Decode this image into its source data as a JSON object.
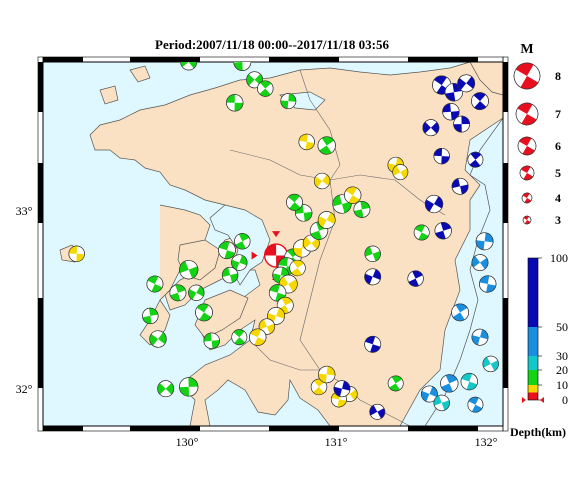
{
  "map": {
    "title": "Period:2007/11/18 00:00--2017/11/18 03:56",
    "lat_labels": [
      "33°",
      "32°"
    ],
    "lon_labels": [
      "130°",
      "131°",
      "132°"
    ],
    "colors": {
      "sea": "#dff8ff",
      "land": "#fbe1c3",
      "coast": "#555555"
    }
  },
  "magnitude_legend": {
    "title": "M",
    "items": [
      {
        "label": "8",
        "mag": 8
      },
      {
        "label": "7",
        "mag": 7
      },
      {
        "label": "6",
        "mag": 6
      },
      {
        "label": "5",
        "mag": 5
      },
      {
        "label": "4",
        "mag": 4
      },
      {
        "label": "3",
        "mag": 3
      }
    ],
    "color": "#e8101e"
  },
  "depth_scale": {
    "title": "Depth(km)",
    "ticks": [
      "100",
      "50",
      "30",
      "20",
      "10",
      "0"
    ],
    "bands": [
      {
        "from": 0,
        "to": 5,
        "color": "#e8101e"
      },
      {
        "from": 5,
        "to": 10,
        "color": "#f6d800"
      },
      {
        "from": 10,
        "to": 20,
        "color": "#14d214"
      },
      {
        "from": 20,
        "to": 30,
        "color": "#12c8c8"
      },
      {
        "from": 30,
        "to": 50,
        "color": "#1a8fe0"
      },
      {
        "from": 50,
        "to": 100,
        "color": "#0a0ab4"
      }
    ]
  },
  "chart_data": {
    "type": "scatter",
    "x_range": [
      129.1,
      132.1
    ],
    "y_range": [
      31.8,
      33.85
    ],
    "events": [
      {
        "lon": 130.62,
        "lat": 32.76,
        "depth": 0,
        "mag": 5.4,
        "color": "#e8101e"
      },
      {
        "lon": 130.73,
        "lat": 32.75,
        "depth": 12,
        "mag": 4.1,
        "color": "#14d214"
      },
      {
        "lon": 130.79,
        "lat": 32.8,
        "depth": 8,
        "mag": 4.3,
        "color": "#f6d800"
      },
      {
        "lon": 130.85,
        "lat": 32.83,
        "depth": 10,
        "mag": 4.0,
        "color": "#f6d800"
      },
      {
        "lon": 130.69,
        "lat": 32.7,
        "depth": 12,
        "mag": 4.2,
        "color": "#14d214"
      },
      {
        "lon": 130.76,
        "lat": 32.69,
        "depth": 8,
        "mag": 3.9,
        "color": "#f6d800"
      },
      {
        "lon": 130.65,
        "lat": 32.65,
        "depth": 10,
        "mag": 4.0,
        "color": "#14d214"
      },
      {
        "lon": 130.7,
        "lat": 32.6,
        "depth": 8,
        "mag": 4.4,
        "color": "#f6d800"
      },
      {
        "lon": 130.63,
        "lat": 32.55,
        "depth": 12,
        "mag": 4.1,
        "color": "#14d214"
      },
      {
        "lon": 130.68,
        "lat": 32.48,
        "depth": 8,
        "mag": 4.0,
        "color": "#f6d800"
      },
      {
        "lon": 130.62,
        "lat": 32.42,
        "depth": 7,
        "mag": 4.2,
        "color": "#f6d800"
      },
      {
        "lon": 130.56,
        "lat": 32.36,
        "depth": 8,
        "mag": 3.9,
        "color": "#f6d800"
      },
      {
        "lon": 130.5,
        "lat": 32.3,
        "depth": 7,
        "mag": 4.1,
        "color": "#f6d800"
      },
      {
        "lon": 130.9,
        "lat": 32.9,
        "depth": 12,
        "mag": 4.3,
        "color": "#14d214"
      },
      {
        "lon": 130.95,
        "lat": 32.96,
        "depth": 8,
        "mag": 4.2,
        "color": "#f6d800"
      },
      {
        "lon": 131.05,
        "lat": 33.05,
        "depth": 12,
        "mag": 4.5,
        "color": "#14d214"
      },
      {
        "lon": 131.12,
        "lat": 33.1,
        "depth": 8,
        "mag": 4.1,
        "color": "#f6d800"
      },
      {
        "lon": 131.18,
        "lat": 33.02,
        "depth": 12,
        "mag": 4.0,
        "color": "#14d214"
      },
      {
        "lon": 130.92,
        "lat": 33.18,
        "depth": 7,
        "mag": 3.9,
        "color": "#f6d800"
      },
      {
        "lon": 130.8,
        "lat": 33.0,
        "depth": 12,
        "mag": 4.1,
        "color": "#14d214"
      },
      {
        "lon": 130.74,
        "lat": 33.06,
        "depth": 12,
        "mag": 4.0,
        "color": "#14d214"
      },
      {
        "lon": 130.4,
        "lat": 33.85,
        "depth": 12,
        "mag": 4.2,
        "color": "#14d214"
      },
      {
        "lon": 130.48,
        "lat": 33.75,
        "depth": 12,
        "mag": 4.0,
        "color": "#14d214"
      },
      {
        "lon": 130.35,
        "lat": 33.62,
        "depth": 12,
        "mag": 4.1,
        "color": "#14d214"
      },
      {
        "lon": 130.55,
        "lat": 33.7,
        "depth": 12,
        "mag": 3.9,
        "color": "#14d214"
      },
      {
        "lon": 130.7,
        "lat": 33.63,
        "depth": 12,
        "mag": 3.8,
        "color": "#14d214"
      },
      {
        "lon": 130.05,
        "lat": 33.85,
        "depth": 12,
        "mag": 4.0,
        "color": "#14d214"
      },
      {
        "lon": 130.82,
        "lat": 33.4,
        "depth": 8,
        "mag": 3.9,
        "color": "#f6d800"
      },
      {
        "lon": 130.95,
        "lat": 33.38,
        "depth": 12,
        "mag": 4.3,
        "color": "#14d214"
      },
      {
        "lon": 131.4,
        "lat": 33.27,
        "depth": 8,
        "mag": 3.9,
        "color": "#f6d800"
      },
      {
        "lon": 131.43,
        "lat": 33.23,
        "depth": 8,
        "mag": 3.8,
        "color": "#f6d800"
      },
      {
        "lon": 130.3,
        "lat": 32.79,
        "depth": 12,
        "mag": 4.2,
        "color": "#14d214"
      },
      {
        "lon": 130.4,
        "lat": 32.84,
        "depth": 12,
        "mag": 3.9,
        "color": "#14d214"
      },
      {
        "lon": 130.38,
        "lat": 32.72,
        "depth": 12,
        "mag": 3.9,
        "color": "#14d214"
      },
      {
        "lon": 130.05,
        "lat": 32.68,
        "depth": 12,
        "mag": 4.5,
        "color": "#14d214"
      },
      {
        "lon": 129.83,
        "lat": 32.6,
        "depth": 12,
        "mag": 4.0,
        "color": "#14d214"
      },
      {
        "lon": 129.98,
        "lat": 32.55,
        "depth": 12,
        "mag": 4.0,
        "color": "#14d214"
      },
      {
        "lon": 130.1,
        "lat": 32.55,
        "depth": 12,
        "mag": 3.9,
        "color": "#14d214"
      },
      {
        "lon": 130.32,
        "lat": 32.65,
        "depth": 12,
        "mag": 3.9,
        "color": "#14d214"
      },
      {
        "lon": 130.15,
        "lat": 32.44,
        "depth": 12,
        "mag": 4.2,
        "color": "#14d214"
      },
      {
        "lon": 129.8,
        "lat": 32.42,
        "depth": 12,
        "mag": 3.9,
        "color": "#14d214"
      },
      {
        "lon": 129.85,
        "lat": 32.29,
        "depth": 12,
        "mag": 4.1,
        "color": "#14d214"
      },
      {
        "lon": 130.2,
        "lat": 32.28,
        "depth": 12,
        "mag": 3.9,
        "color": "#14d214"
      },
      {
        "lon": 130.38,
        "lat": 32.3,
        "depth": 12,
        "mag": 3.8,
        "color": "#14d214"
      },
      {
        "lon": 130.05,
        "lat": 32.02,
        "depth": 12,
        "mag": 4.5,
        "color": "#14d214"
      },
      {
        "lon": 129.9,
        "lat": 32.01,
        "depth": 12,
        "mag": 4.0,
        "color": "#14d214"
      },
      {
        "lon": 129.32,
        "lat": 32.77,
        "depth": 7,
        "mag": 3.9,
        "color": "#f6d800"
      },
      {
        "lon": 130.9,
        "lat": 32.02,
        "depth": 8,
        "mag": 3.9,
        "color": "#f6d800"
      },
      {
        "lon": 130.95,
        "lat": 32.09,
        "depth": 8,
        "mag": 4.1,
        "color": "#f6d800"
      },
      {
        "lon": 131.1,
        "lat": 31.98,
        "depth": 8,
        "mag": 3.8,
        "color": "#f6d800"
      },
      {
        "lon": 131.03,
        "lat": 31.95,
        "depth": 8,
        "mag": 3.8,
        "color": "#f6d800"
      },
      {
        "lon": 131.4,
        "lat": 32.04,
        "depth": 12,
        "mag": 3.8,
        "color": "#14d214"
      },
      {
        "lon": 131.05,
        "lat": 32.01,
        "depth": 60,
        "mag": 4.0,
        "color": "#0a0ab4"
      },
      {
        "lon": 131.28,
        "lat": 31.88,
        "depth": 60,
        "mag": 3.8,
        "color": "#0a0ab4"
      },
      {
        "lon": 131.25,
        "lat": 32.26,
        "depth": 60,
        "mag": 4.0,
        "color": "#0a0ab4"
      },
      {
        "lon": 131.53,
        "lat": 32.63,
        "depth": 60,
        "mag": 3.9,
        "color": "#0a0ab4"
      },
      {
        "lon": 131.25,
        "lat": 32.64,
        "depth": 60,
        "mag": 4.0,
        "color": "#0a0ab4"
      },
      {
        "lon": 131.25,
        "lat": 32.77,
        "depth": 15,
        "mag": 3.9,
        "color": "#14d214"
      },
      {
        "lon": 131.57,
        "lat": 32.89,
        "depth": 15,
        "mag": 3.8,
        "color": "#14d214"
      },
      {
        "lon": 131.71,
        "lat": 32.9,
        "depth": 70,
        "mag": 4.1,
        "color": "#0a0ab4"
      },
      {
        "lon": 131.65,
        "lat": 33.05,
        "depth": 70,
        "mag": 4.3,
        "color": "#0a0ab4"
      },
      {
        "lon": 131.82,
        "lat": 33.15,
        "depth": 70,
        "mag": 4.0,
        "color": "#0a0ab4"
      },
      {
        "lon": 131.7,
        "lat": 33.72,
        "depth": 70,
        "mag": 4.5,
        "color": "#0a0ab4"
      },
      {
        "lon": 131.78,
        "lat": 33.68,
        "depth": 70,
        "mag": 4.3,
        "color": "#0a0ab4"
      },
      {
        "lon": 131.86,
        "lat": 33.73,
        "depth": 70,
        "mag": 4.2,
        "color": "#0a0ab4"
      },
      {
        "lon": 131.76,
        "lat": 33.57,
        "depth": 70,
        "mag": 4.1,
        "color": "#0a0ab4"
      },
      {
        "lon": 131.95,
        "lat": 33.63,
        "depth": 70,
        "mag": 4.2,
        "color": "#0a0ab4"
      },
      {
        "lon": 131.83,
        "lat": 33.5,
        "depth": 70,
        "mag": 4.0,
        "color": "#0a0ab4"
      },
      {
        "lon": 131.63,
        "lat": 33.48,
        "depth": 70,
        "mag": 4.0,
        "color": "#0a0ab4"
      },
      {
        "lon": 131.7,
        "lat": 33.32,
        "depth": 70,
        "mag": 3.9,
        "color": "#0a0ab4"
      },
      {
        "lon": 131.92,
        "lat": 33.3,
        "depth": 70,
        "mag": 3.8,
        "color": "#0a0ab4"
      },
      {
        "lon": 131.98,
        "lat": 32.84,
        "depth": 40,
        "mag": 4.2,
        "color": "#1a8fe0"
      },
      {
        "lon": 131.95,
        "lat": 32.72,
        "depth": 40,
        "mag": 4.0,
        "color": "#1a8fe0"
      },
      {
        "lon": 132.0,
        "lat": 32.6,
        "depth": 40,
        "mag": 4.1,
        "color": "#1a8fe0"
      },
      {
        "lon": 131.82,
        "lat": 32.44,
        "depth": 40,
        "mag": 4.2,
        "color": "#1a8fe0"
      },
      {
        "lon": 131.95,
        "lat": 32.3,
        "depth": 40,
        "mag": 4.0,
        "color": "#1a8fe0"
      },
      {
        "lon": 132.02,
        "lat": 32.15,
        "depth": 25,
        "mag": 3.9,
        "color": "#12c8c8"
      },
      {
        "lon": 131.88,
        "lat": 32.05,
        "depth": 25,
        "mag": 4.1,
        "color": "#12c8c8"
      },
      {
        "lon": 131.75,
        "lat": 32.04,
        "depth": 40,
        "mag": 4.3,
        "color": "#1a8fe0"
      },
      {
        "lon": 131.62,
        "lat": 31.98,
        "depth": 40,
        "mag": 4.0,
        "color": "#1a8fe0"
      },
      {
        "lon": 131.7,
        "lat": 31.93,
        "depth": 25,
        "mag": 3.9,
        "color": "#12c8c8"
      },
      {
        "lon": 131.92,
        "lat": 31.92,
        "depth": 40,
        "mag": 3.8,
        "color": "#1a8fe0"
      }
    ]
  }
}
